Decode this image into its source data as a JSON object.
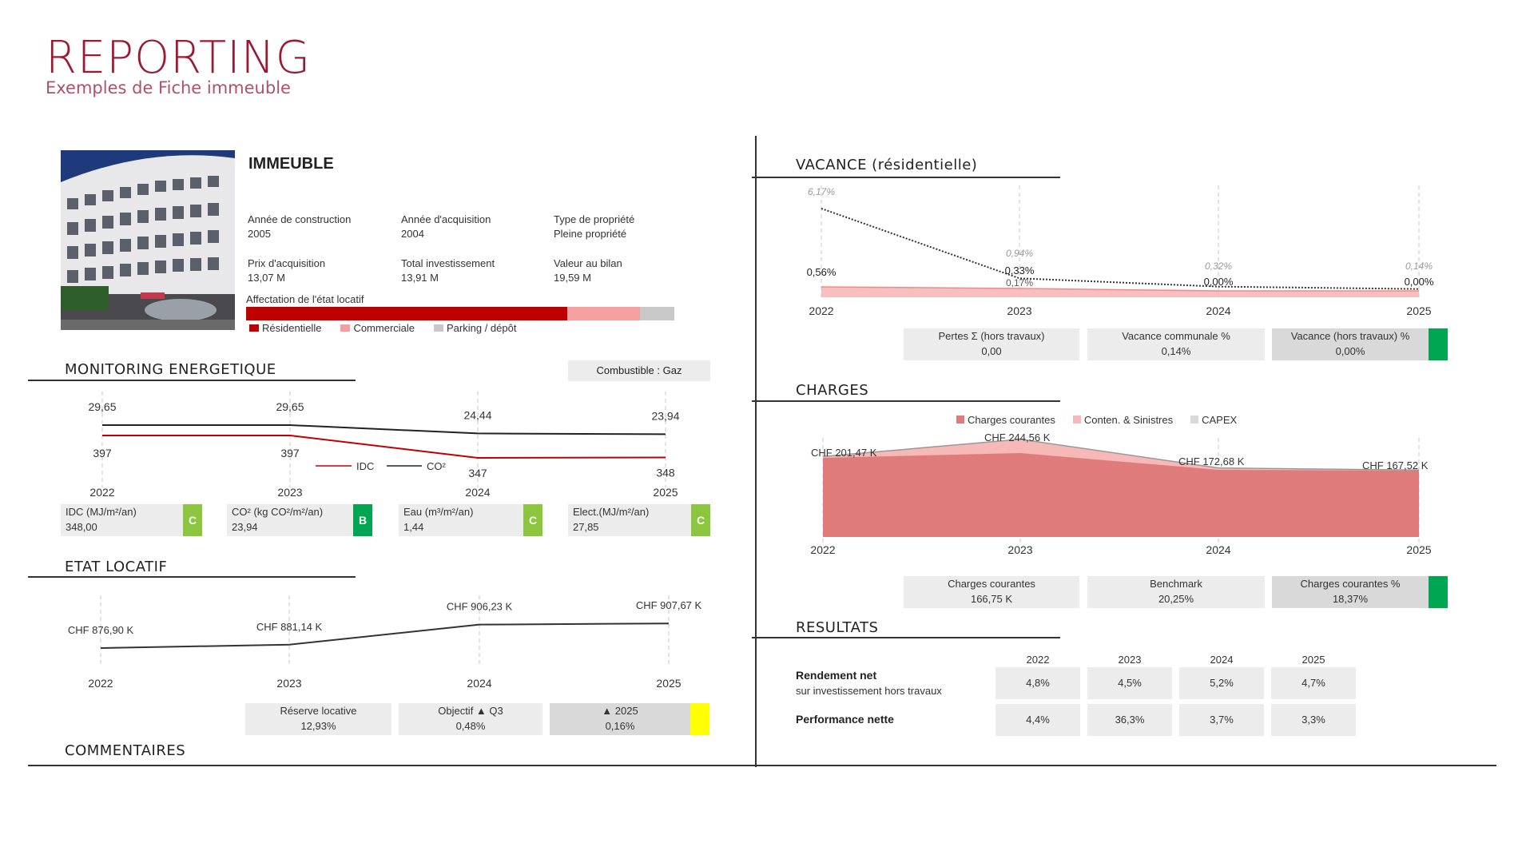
{
  "header": {
    "title": "REPORTING",
    "subtitle": "Exemples de Fiche immeuble"
  },
  "building": {
    "title": "IMMEUBLE",
    "facts": [
      {
        "label": "Année de construction",
        "value": "2005"
      },
      {
        "label": "Année d'acquisition",
        "value": "2004"
      },
      {
        "label": "Type de propriété",
        "value": "Pleine propriété"
      },
      {
        "label": "Prix d'acquisition",
        "value": "13,07 M"
      },
      {
        "label": "Total investissement",
        "value": "13,91 M"
      },
      {
        "label": "Valeur au bilan",
        "value": "19,59 M"
      }
    ],
    "affectation_label": "Affectation de l'état locatif",
    "affectation": [
      {
        "name": "Résidentielle",
        "share": 0.75,
        "color": "#c00000"
      },
      {
        "name": "Commerciale",
        "share": 0.17,
        "color": "#f4a0a0"
      },
      {
        "name": "Parking / dépôt",
        "share": 0.08,
        "color": "#c8c8c8"
      }
    ]
  },
  "energy": {
    "title": "MONITORING ENERGETIQUE",
    "fuel": "Combustible : Gaz",
    "years": [
      "2022",
      "2023",
      "2024",
      "2025"
    ],
    "co2_labels": [
      "29,65",
      "29,65",
      "24,44",
      "23,94"
    ],
    "idc_labels": [
      "397",
      "397",
      "347",
      "348"
    ],
    "legend": {
      "idc": "IDC",
      "co2": "CO²"
    },
    "kpis": [
      {
        "label": "IDC (MJ/m²/an)",
        "value": "348,00",
        "grade": "C",
        "color": "#8cc63f"
      },
      {
        "label": "CO² (kg CO²/m²/an)",
        "value": "23,94",
        "grade": "B",
        "color": "#00a651"
      },
      {
        "label": "Eau (m³/m²/an)",
        "value": "1,44",
        "grade": "C",
        "color": "#8cc63f"
      },
      {
        "label": "Elect.(MJ/m²/an)",
        "value": "27,85",
        "grade": "C",
        "color": "#8cc63f"
      }
    ],
    "chart_data": {
      "type": "line",
      "x": [
        "2022",
        "2023",
        "2024",
        "2025"
      ],
      "series": [
        {
          "name": "IDC",
          "values": [
            397,
            397,
            347,
            348
          ],
          "color": "#c00000"
        },
        {
          "name": "CO²",
          "values": [
            29.65,
            29.65,
            24.44,
            23.94
          ],
          "color": "#222222"
        }
      ]
    }
  },
  "rental": {
    "title": "ETAT LOCATIF",
    "years": [
      "2022",
      "2023",
      "2024",
      "2025"
    ],
    "labels": [
      "CHF 876,90 K",
      "CHF 881,14 K",
      "CHF 906,23 K",
      "CHF 907,67 K"
    ],
    "boxes": [
      {
        "label": "Réserve locative",
        "value": "12,93%"
      },
      {
        "label": "Objectif ▲ Q3",
        "value": "0,48%"
      },
      {
        "label": "▲ 2025",
        "value": "0,16%",
        "flag": "#ffff00"
      }
    ],
    "chart_data": {
      "type": "line",
      "x": [
        "2022",
        "2023",
        "2024",
        "2025"
      ],
      "series": [
        {
          "values": [
            876.9,
            881.14,
            906.23,
            907.67
          ]
        }
      ]
    }
  },
  "comments": {
    "title": "COMMENTAIRES"
  },
  "vacancy": {
    "title": "VACANCE (résidentielle)",
    "years": [
      "2022",
      "2023",
      "2024",
      "2025"
    ],
    "communal_labels": [
      "6,17%",
      "0,94%",
      "0,32%",
      "0,14%"
    ],
    "residential_labels": [
      "0,56%",
      "0,33%",
      "0,00%",
      "0,00%"
    ],
    "extra_label": "0,17%",
    "boxes": [
      {
        "label": "Pertes Σ (hors travaux)",
        "value": "0,00"
      },
      {
        "label": "Vacance communale %",
        "value": "0,14%"
      },
      {
        "label": "Vacance (hors travaux) %",
        "value": "0,00%",
        "flag": "#00a651"
      }
    ],
    "chart_data": {
      "type": "line",
      "x": [
        "2022",
        "2023",
        "2024",
        "2025"
      ],
      "series": [
        {
          "values": [
            6.17,
            0.94,
            0.32,
            0.14
          ]
        },
        {
          "values": [
            0.56,
            0.33,
            0.0,
            0.0
          ]
        }
      ]
    }
  },
  "charges": {
    "title": "CHARGES",
    "legend": [
      {
        "name": "Charges courantes",
        "color": "#e07b7b"
      },
      {
        "name": "Conten. & Sinistres",
        "color": "#f7b8b8"
      },
      {
        "name": "CAPEX",
        "color": "#d9d9d9"
      }
    ],
    "years": [
      "2022",
      "2023",
      "2024",
      "2025"
    ],
    "labels": [
      "CHF 201,47 K",
      "CHF 244,56 K",
      "CHF 172,68 K",
      "CHF 167,52 K"
    ],
    "boxes": [
      {
        "label": "Charges courantes",
        "value": "166,75 K"
      },
      {
        "label": "Benchmark",
        "value": "20,25%"
      },
      {
        "label": "Charges courantes %",
        "value": "18,37%",
        "flag": "#00a651"
      }
    ],
    "chart_data": {
      "type": "area",
      "x": [
        "2022",
        "2023",
        "2024",
        "2025"
      ],
      "series": [
        {
          "name": "Charges courantes",
          "values": [
            198,
            210,
            168,
            166
          ]
        },
        {
          "name": "Conten. & Sinistres",
          "values": [
            3.47,
            34.56,
            4.68,
            1.52
          ]
        },
        {
          "name": "CAPEX",
          "values": [
            0,
            0,
            0,
            0
          ]
        }
      ],
      "totals": [
        201.47,
        244.56,
        172.68,
        167.52
      ]
    }
  },
  "results": {
    "title": "RESULTATS",
    "years": [
      "2022",
      "2023",
      "2024",
      "2025"
    ],
    "rows": [
      {
        "label": "Rendement net",
        "sublabel": "sur investissement hors travaux",
        "values": [
          "4,8%",
          "4,5%",
          "5,2%",
          "4,7%"
        ]
      },
      {
        "label": "Performance nette",
        "sublabel": "",
        "values": [
          "4,4%",
          "36,3%",
          "3,7%",
          "3,3%"
        ]
      }
    ]
  }
}
